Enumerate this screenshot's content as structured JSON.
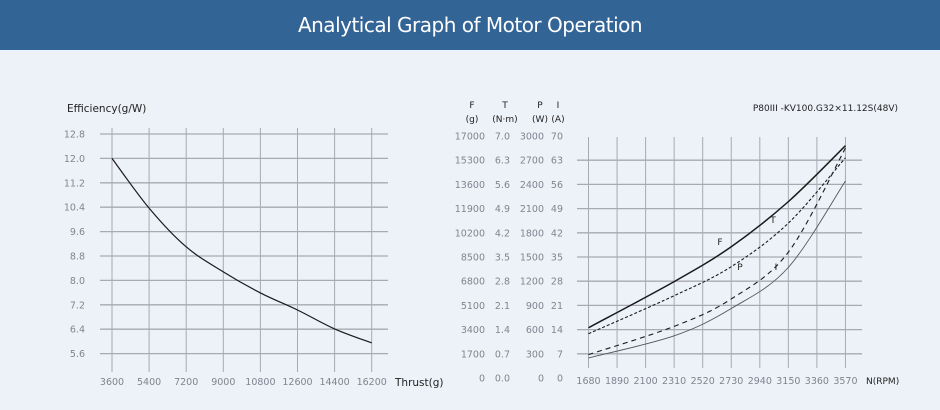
{
  "header": {
    "title": "Analytical Graph of Motor Operation"
  },
  "colors": {
    "header_bg": "#336496",
    "background": "#edf1f8",
    "grid": "#a7abb1",
    "curve": "#1a1a1a"
  },
  "chart_data": [
    {
      "type": "line",
      "title": "",
      "ylabel": "Efficiency(g/W)",
      "xlabel": "Thrust(g)",
      "x_ticks": [
        3600,
        5400,
        7200,
        9000,
        10800,
        12600,
        14400,
        16200
      ],
      "y_ticks": [
        12.8,
        12.0,
        11.2,
        10.4,
        9.6,
        8.8,
        8.0,
        7.2,
        6.4,
        5.6
      ],
      "ylim": [
        5.6,
        12.8
      ],
      "grid": true,
      "series": [
        {
          "name": "Efficiency",
          "x": [
            3600,
            5400,
            7200,
            9000,
            10800,
            12600,
            14400,
            16200
          ],
          "y": [
            12.0,
            10.37,
            9.1,
            8.28,
            7.59,
            7.03,
            6.41,
            5.95
          ]
        }
      ]
    },
    {
      "type": "line",
      "title": "P80III -KV100.G32×11.12S(48V)",
      "xlabel": "N(RPM)",
      "x_ticks": [
        1680,
        1890,
        2100,
        2310,
        2520,
        2730,
        2940,
        3150,
        3360,
        3570
      ],
      "y_axes": [
        {
          "name": "F",
          "unit": "(g)",
          "ticks": [
            17000,
            15300,
            13600,
            11900,
            10200,
            8500,
            6800,
            5100,
            3400,
            1700,
            0
          ]
        },
        {
          "name": "T",
          "unit": "(N·m)",
          "ticks": [
            "7.0",
            "6.3",
            "5.6",
            "4.9",
            "4.2",
            "3.5",
            "2.8",
            "2.1",
            "1.4",
            "0.7",
            "0.0"
          ]
        },
        {
          "name": "P",
          "unit": "(W)",
          "ticks": [
            3000,
            2700,
            2400,
            2100,
            1800,
            1500,
            1200,
            900,
            600,
            300,
            0
          ]
        },
        {
          "name": "I",
          "unit": "(A)",
          "ticks": [
            70,
            63,
            56,
            49,
            42,
            35,
            28,
            21,
            14,
            7,
            0
          ]
        }
      ],
      "grid": true,
      "series": [
        {
          "name": "F",
          "style": "solid-thick",
          "x": [
            1680,
            2310,
            2730,
            3150,
            3570
          ],
          "y": [
            3530,
            6770,
            9220,
            12390,
            16320
          ]
        },
        {
          "name": "T",
          "style": "dotted",
          "x": [
            1680,
            2310,
            2730,
            3150,
            3570
          ],
          "y": [
            1.28,
            2.38,
            3.22,
            4.48,
            6.37
          ]
        },
        {
          "name": "P",
          "style": "dashed",
          "x": [
            1680,
            2310,
            2730,
            3150,
            3570
          ],
          "y": [
            290,
            640,
            980,
            1560,
            2850
          ]
        },
        {
          "name": "I",
          "style": "solid-thin",
          "x": [
            1680,
            2310,
            2730,
            3150,
            3570
          ],
          "y": [
            5.8,
            12.2,
            20.1,
            32.0,
            57.0
          ]
        }
      ],
      "annotations": [
        "F",
        "T",
        "P",
        "I"
      ]
    }
  ]
}
